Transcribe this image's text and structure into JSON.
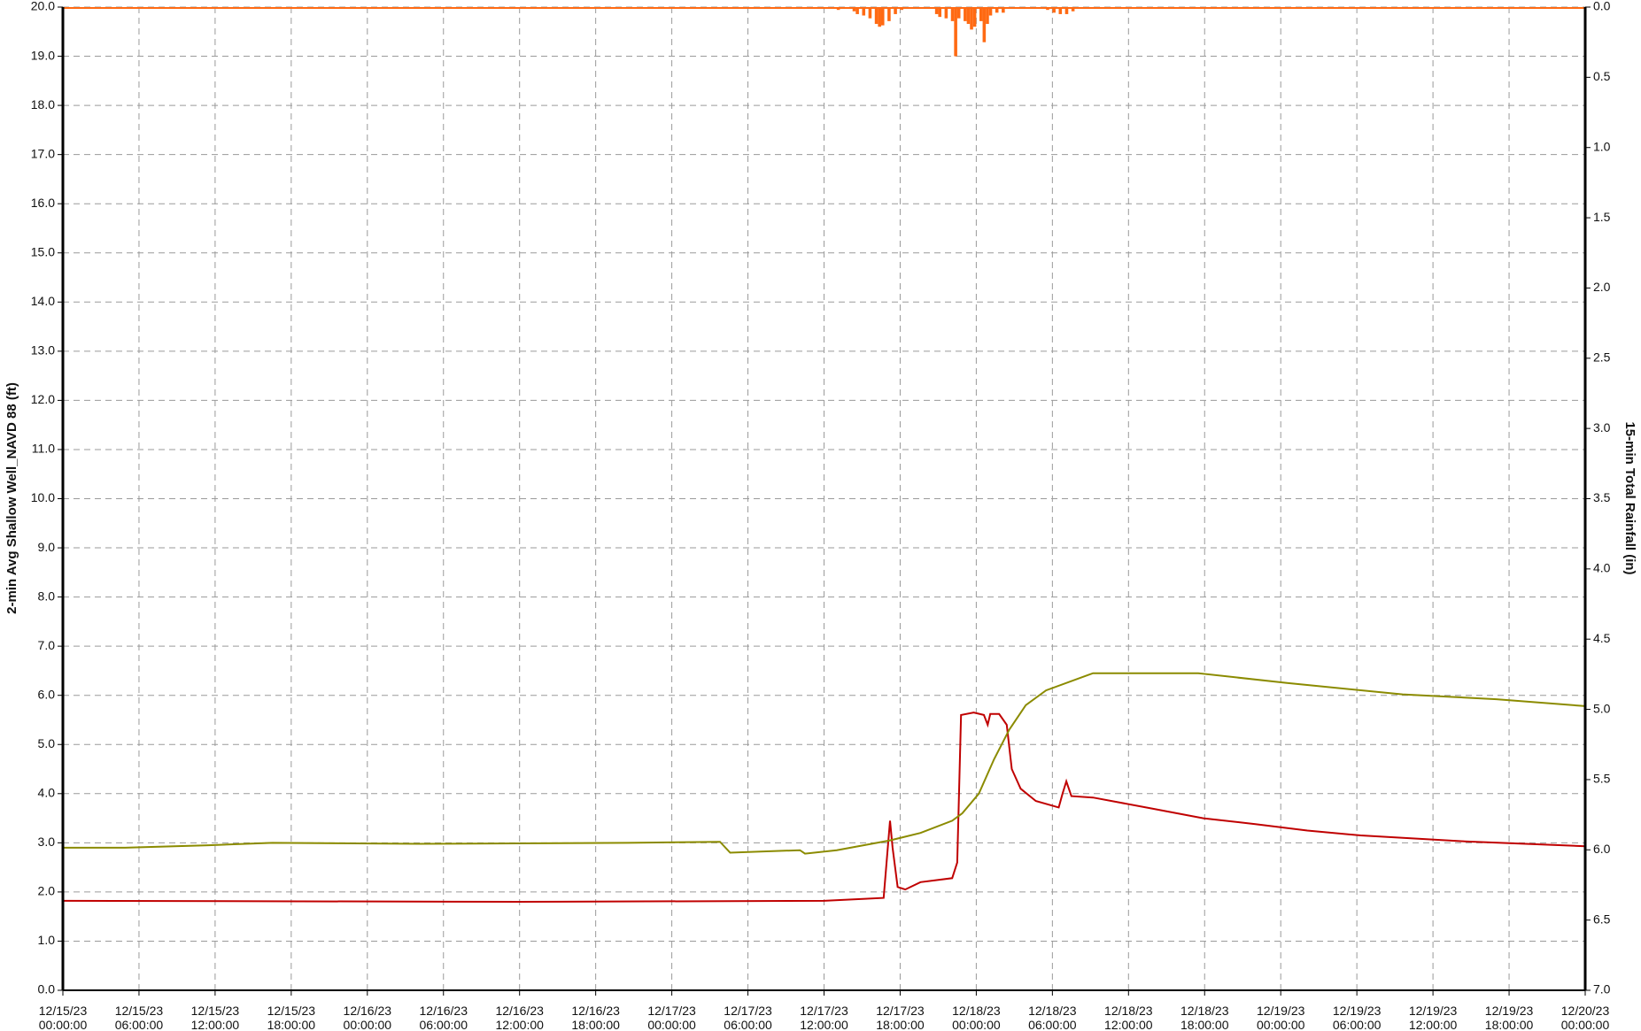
{
  "chart_data": {
    "type": "line",
    "ylabel": "2-min Avg Shallow Well_NAVD 88 (ft)",
    "y2label": "15-min Total Rainfall (in)",
    "xlim": [
      "12/15/23 00:00:00",
      "12/20/23 00:00:00"
    ],
    "xticks": [
      "12/15/23 00:00:00",
      "12/15/23 06:00:00",
      "12/15/23 12:00:00",
      "12/15/23 18:00:00",
      "12/16/23 00:00:00",
      "12/16/23 06:00:00",
      "12/16/23 12:00:00",
      "12/16/23 18:00:00",
      "12/17/23 00:00:00",
      "12/17/23 06:00:00",
      "12/17/23 12:00:00",
      "12/17/23 18:00:00",
      "12/18/23 00:00:00",
      "12/18/23 06:00:00",
      "12/18/23 12:00:00",
      "12/18/23 18:00:00",
      "12/19/23 00:00:00",
      "12/19/23 06:00:00",
      "12/19/23 12:00:00",
      "12/19/23 18:00:00",
      "12/20/23 00:00:00"
    ],
    "ylim": [
      0,
      20
    ],
    "yticks": [
      {
        "value": 0,
        "label": "0.0"
      },
      {
        "value": 1,
        "label": "1.0"
      },
      {
        "value": 2,
        "label": "2.0"
      },
      {
        "value": 3,
        "label": "3.0"
      },
      {
        "value": 4,
        "label": "4.0"
      },
      {
        "value": 5,
        "label": "5.0"
      },
      {
        "value": 6,
        "label": "6.0"
      },
      {
        "value": 7,
        "label": "7.0"
      },
      {
        "value": 8,
        "label": "8.0"
      },
      {
        "value": 9,
        "label": "9.0"
      },
      {
        "value": 10,
        "label": "10.0"
      },
      {
        "value": 11,
        "label": "11.0"
      },
      {
        "value": 12,
        "label": "12.0"
      },
      {
        "value": 13,
        "label": "13.0"
      },
      {
        "value": 14,
        "label": "14.0"
      },
      {
        "value": 15,
        "label": "15.0"
      },
      {
        "value": 16,
        "label": "16.0"
      },
      {
        "value": 17,
        "label": "17.0"
      },
      {
        "value": 18,
        "label": "18.0"
      },
      {
        "value": 19,
        "label": "19.0"
      },
      {
        "value": 20,
        "label": "20.0"
      }
    ],
    "y2lim": [
      7,
      0
    ],
    "y2ticks": [
      {
        "value": 0,
        "label": "0.0"
      },
      0.5,
      {
        "value": 1,
        "label": "1.0"
      },
      1.5,
      {
        "value": 2,
        "label": "2.0"
      },
      2.5,
      {
        "value": 3,
        "label": "3.0"
      },
      3.5,
      {
        "value": 4,
        "label": "4.0"
      },
      4.5,
      {
        "value": 5,
        "label": "5.0"
      },
      5.5,
      {
        "value": 6,
        "label": "6.0"
      },
      6.5,
      {
        "value": 7,
        "label": "7.0"
      }
    ],
    "grid": true,
    "series": [
      {
        "color": "#c00000",
        "x": [
          "12/15/23 00:00:00",
          "12/16/23 12:00:00",
          "12/17/23 12:00:00",
          "12/17/23 16:42:00",
          "12/17/23 17:12:00",
          "12/17/23 17:24:00",
          "12/17/23 17:48:00",
          "12/17/23 18:24:00",
          "12/17/23 19:36:00",
          "12/17/23 22:06:00",
          "12/17/23 22:30:00",
          "12/17/23 22:48:00",
          "12/17/23 23:48:00",
          "12/18/23 00:36:00",
          "12/18/23 00:54:00",
          "12/18/23 01:06:00",
          "12/18/23 01:48:00",
          "12/18/23 02:24:00",
          "12/18/23 02:48:00",
          "12/18/23 03:30:00",
          "12/18/23 04:42:00",
          "12/18/23 06:30:00",
          "12/18/23 06:48:00",
          "12/18/23 07:06:00",
          "12/18/23 07:30:00",
          "12/18/23 09:12:00",
          "12/18/23 13:48:00",
          "12/18/23 17:54:00",
          "12/18/23 22:00:00",
          "12/19/23 02:06:00",
          "12/19/23 06:18:00",
          "12/19/23 14:30:00",
          "12/20/23 00:00:00"
        ],
        "values": [
          1.82,
          1.8,
          1.82,
          1.88,
          3.45,
          2.9,
          2.1,
          2.05,
          2.2,
          2.28,
          2.6,
          5.6,
          5.65,
          5.6,
          5.4,
          5.62,
          5.62,
          5.4,
          4.5,
          4.1,
          3.85,
          3.72,
          4.0,
          4.25,
          3.95,
          3.92,
          3.7,
          3.5,
          3.38,
          3.25,
          3.15,
          3.03,
          2.93
        ]
      },
      {
        "color": "#8b8b00",
        "x": [
          "12/15/23 00:00:00",
          "12/15/23 04:54:00",
          "12/15/23 11:30:00",
          "12/15/23 16:30:00",
          "12/16/23 04:00:00",
          "12/16/23 20:30:00",
          "12/17/23 03:48:00",
          "12/17/23 04:36:00",
          "12/17/23 10:06:00",
          "12/17/23 10:30:00",
          "12/17/23 13:00:00",
          "12/17/23 17:12:00",
          "12/17/23 19:36:00",
          "12/17/23 22:06:00",
          "12/17/23 22:54:00",
          "12/18/23 00:12:00",
          "12/18/23 01:24:00",
          "12/18/23 02:36:00",
          "12/18/23 03:54:00",
          "12/18/23 05:30:00",
          "12/18/23 09:12:00",
          "12/18/23 17:30:00",
          "12/19/23 00:30:00",
          "12/19/23 09:36:00",
          "12/19/23 17:00:00",
          "12/20/23 00:00:00"
        ],
        "values": [
          2.9,
          2.9,
          2.95,
          3.0,
          2.98,
          3.0,
          3.02,
          2.8,
          2.85,
          2.78,
          2.85,
          3.05,
          3.2,
          3.45,
          3.6,
          4.0,
          4.7,
          5.3,
          5.8,
          6.1,
          6.45,
          6.45,
          6.25,
          6.02,
          5.92,
          5.78
        ]
      },
      {
        "type": "bar",
        "axis": "y2",
        "color": "#ff6a13",
        "x": [
          "12/17/23 11:30:00",
          "12/17/23 12:00:00",
          "12/17/23 13:00:00",
          "12/17/23 14:15:00",
          "12/17/23 14:30:00",
          "12/17/23 15:00:00",
          "12/17/23 15:30:00",
          "12/17/23 16:00:00",
          "12/17/23 16:15:00",
          "12/17/23 16:30:00",
          "12/17/23 17:00:00",
          "12/17/23 17:30:00",
          "12/17/23 18:00:00",
          "12/17/23 20:45:00",
          "12/17/23 21:00:00",
          "12/17/23 21:30:00",
          "12/17/23 22:00:00",
          "12/17/23 22:15:00",
          "12/17/23 22:30:00",
          "12/17/23 23:00:00",
          "12/17/23 23:15:00",
          "12/17/23 23:30:00",
          "12/17/23 23:45:00",
          "12/18/23 00:15:00",
          "12/18/23 00:30:00",
          "12/18/23 00:45:00",
          "12/18/23 01:00:00",
          "12/18/23 01:30:00",
          "12/18/23 02:00:00",
          "12/18/23 05:30:00",
          "12/18/23 06:00:00",
          "12/18/23 06:30:00",
          "12/18/23 07:00:00",
          "12/18/23 07:30:00",
          "12/18/23 08:00:00"
        ],
        "values": [
          0.01,
          0.01,
          0.02,
          0.03,
          0.05,
          0.06,
          0.08,
          0.12,
          0.14,
          0.13,
          0.1,
          0.05,
          0.02,
          0.05,
          0.07,
          0.08,
          0.1,
          0.35,
          0.08,
          0.1,
          0.12,
          0.16,
          0.14,
          0.1,
          0.25,
          0.12,
          0.06,
          0.04,
          0.04,
          0.02,
          0.04,
          0.05,
          0.05,
          0.03,
          0.01
        ]
      }
    ]
  }
}
